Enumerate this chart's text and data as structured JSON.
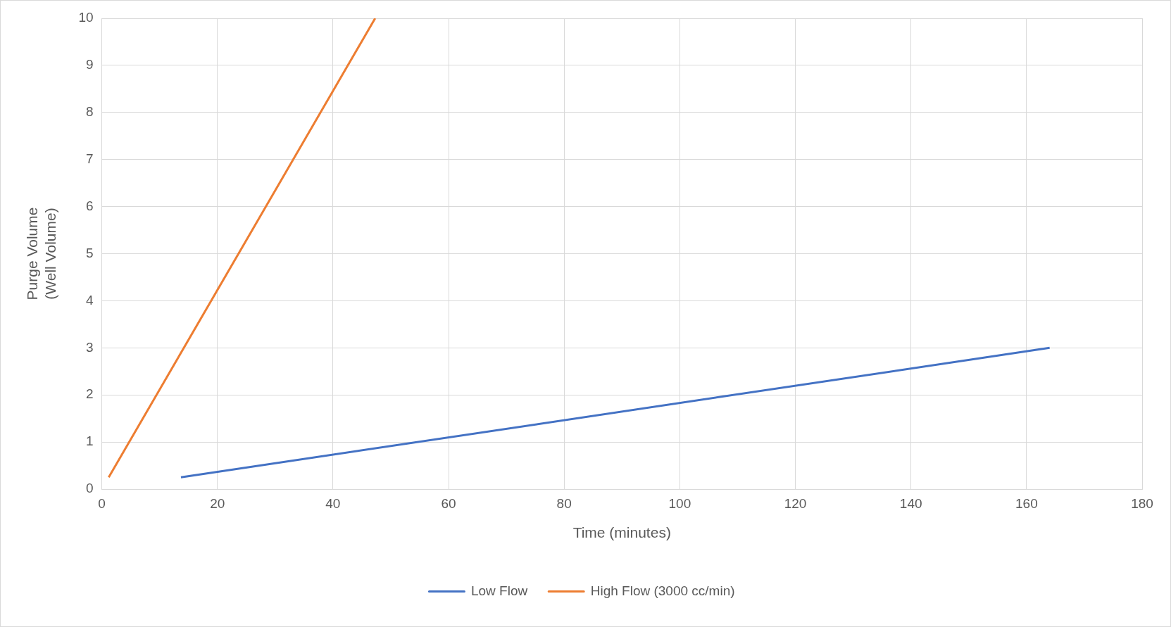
{
  "chart_data": {
    "type": "line",
    "xlabel": "Time (minutes)",
    "ylabel": "Purge Volume\n(Well Volume)",
    "xlim": [
      0,
      180
    ],
    "xticks": [
      0,
      20,
      40,
      60,
      80,
      100,
      120,
      140,
      160,
      180
    ],
    "ylim": [
      0,
      10
    ],
    "yticks": [
      0,
      1,
      2,
      3,
      4,
      5,
      6,
      7,
      8,
      9,
      10
    ],
    "grid": true,
    "legend": "bottom",
    "marker": "none",
    "line_style": "solid",
    "series": [
      {
        "name": "Low Flow",
        "color": "#4472c4",
        "x": [
          13.7,
          164
        ],
        "values": [
          0.25,
          3
        ]
      },
      {
        "name": "High Flow (3000 cc/min)",
        "color": "#ed7d31",
        "x": [
          1.2,
          47.3
        ],
        "values": [
          0.25,
          10
        ]
      }
    ]
  }
}
